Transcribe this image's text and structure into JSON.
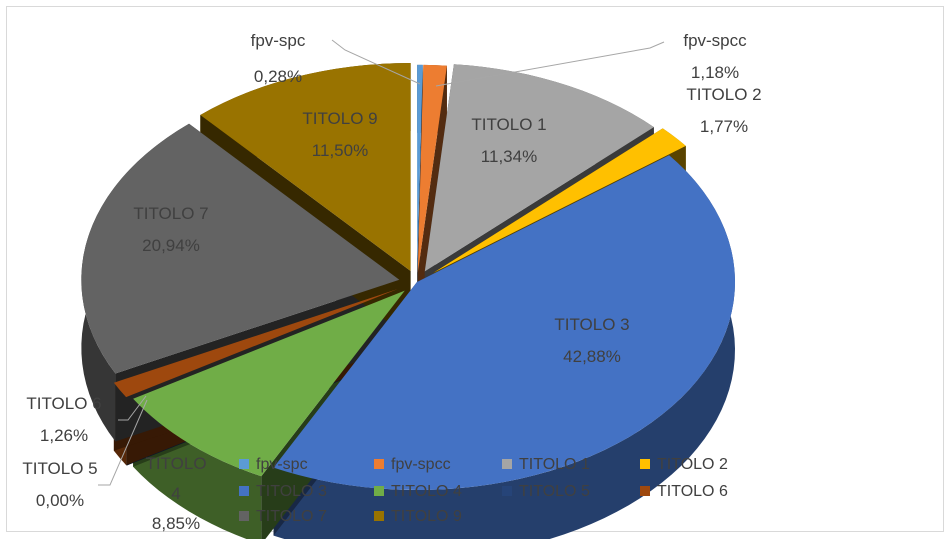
{
  "chart_data": {
    "type": "pie",
    "variant": "3d-exploded",
    "title": "",
    "legend_position": "bottom",
    "slices": [
      {
        "key": "fpv_spc",
        "label": "fpv-spc",
        "value": 0.28,
        "value_text": "0,28%",
        "color": "#5b9bd5"
      },
      {
        "key": "fpv_spcc",
        "label": "fpv-spcc",
        "value": 1.18,
        "value_text": "1,18%",
        "color": "#ed7d31"
      },
      {
        "key": "titolo1",
        "label": "TITOLO 1",
        "value": 11.34,
        "value_text": "11,34%",
        "color": "#a5a5a5"
      },
      {
        "key": "titolo2",
        "label": "TITOLO 2",
        "value": 1.77,
        "value_text": "1,77%",
        "color": "#ffc000"
      },
      {
        "key": "titolo3",
        "label": "TITOLO 3",
        "value": 42.88,
        "value_text": "42,88%",
        "color": "#4472c4"
      },
      {
        "key": "titolo4",
        "label": "TITOLO 4",
        "value": 8.85,
        "value_text": "8,85%",
        "color": "#70ad47"
      },
      {
        "key": "titolo5",
        "label": "TITOLO 5",
        "value": 0.0,
        "value_text": "0,00%",
        "color": "#264478"
      },
      {
        "key": "titolo6",
        "label": "TITOLO 6",
        "value": 1.26,
        "value_text": "1,26%",
        "color": "#9e480e"
      },
      {
        "key": "titolo7",
        "label": "TITOLO 7",
        "value": 20.94,
        "value_text": "20,94%",
        "color": "#636363"
      },
      {
        "key": "titolo9",
        "label": "TITOLO 9",
        "value": 11.5,
        "value_text": "11,50%",
        "color": "#997300"
      }
    ],
    "labels": {
      "titolo4_line1": "TITOLO",
      "titolo4_line2": "4"
    }
  }
}
